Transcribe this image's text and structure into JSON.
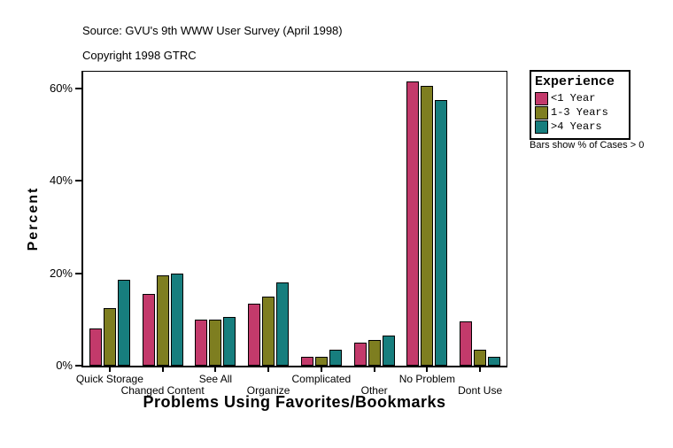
{
  "header": {
    "source_line": "Source: GVU's 9th WWW User Survey (April 1998)",
    "copyright_line": "Copyright 1998 GTRC"
  },
  "legend": {
    "title": "Experience",
    "items": [
      {
        "label": "<1 Year",
        "color": "#C33A6B"
      },
      {
        "label": "1-3 Years",
        "color": "#7E7E20"
      },
      {
        "label": ">4 Years",
        "color": "#177E7E"
      }
    ],
    "note": "Bars show % of Cases > 0"
  },
  "chart_data": {
    "type": "bar",
    "title": "",
    "xlabel": "Problems Using Favorites/Bookmarks",
    "ylabel": "Percent",
    "categories": [
      "Quick Storage",
      "Changed Content",
      "See All",
      "Organize",
      "Complicated",
      "Other",
      "No Problem",
      "Dont Use"
    ],
    "series": [
      {
        "name": "<1 Year",
        "color": "#C33A6B",
        "values": [
          8,
          15.5,
          10,
          13.5,
          2,
          5,
          61.5,
          9.5
        ]
      },
      {
        "name": "1-3 Years",
        "color": "#7E7E20",
        "values": [
          12.5,
          19.5,
          10,
          15,
          2,
          5.5,
          60.5,
          3.5
        ]
      },
      {
        "name": ">4 Years",
        "color": "#177E7E",
        "values": [
          18.5,
          20,
          10.5,
          18,
          3.5,
          6.5,
          57.5,
          2
        ]
      }
    ],
    "yticks": [
      "0%",
      "20%",
      "40%",
      "60%"
    ],
    "ytick_values": [
      0,
      20,
      40,
      60
    ],
    "ylim": [
      0,
      63.6
    ],
    "grid": false,
    "legend_position": "right"
  }
}
